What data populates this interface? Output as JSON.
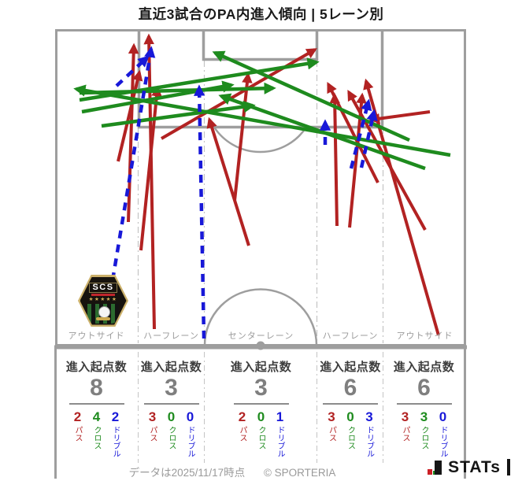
{
  "title": "直近3試合のPA内進入傾向 | 5レーン別",
  "stats_header": "進入起点数",
  "legend_labels": {
    "pass": "パス",
    "cross": "クロス",
    "dribble": "ドリブル"
  },
  "badge": {
    "text": "SCS",
    "stars": "★★★★★"
  },
  "footer": {
    "data_note": "データは2025/11/17時点",
    "copyright": "© SPORTERIA",
    "logo_text": "STATs"
  },
  "colors": {
    "pass": "#b22222",
    "cross": "#1e8b1e",
    "dribble": "#1818d8",
    "pitch_line": "#9e9e9e",
    "lane_line": "#c4c4c4",
    "label_gray": "#9b9b9b",
    "count_gray": "#7f7f7f",
    "header_dark": "#3d3d3d"
  },
  "chart_data": {
    "type": "line",
    "subtype": "soccer-pitch-arrow-map",
    "title": "直近3試合のPA内進入傾向 | 5レーン別",
    "legend": [
      "パス",
      "クロス",
      "ドリブル"
    ],
    "lanes": [
      {
        "label": "アウトサイド",
        "origin_count": 8,
        "pass": 2,
        "cross": 4,
        "dribble": 2
      },
      {
        "label": "ハーフレーン",
        "origin_count": 3,
        "pass": 3,
        "cross": 0,
        "dribble": 0
      },
      {
        "label": "センターレーン",
        "origin_count": 3,
        "pass": 2,
        "cross": 0,
        "dribble": 1
      },
      {
        "label": "ハーフレーン",
        "origin_count": 6,
        "pass": 3,
        "cross": 0,
        "dribble": 3
      },
      {
        "label": "アウトサイド",
        "origin_count": 6,
        "pass": 3,
        "cross": 3,
        "dribble": 0
      }
    ],
    "arrows": [
      {
        "type": "pass",
        "from": [
          196,
          418
        ],
        "to": [
          189,
          46
        ]
      },
      {
        "type": "pass",
        "from": [
          179,
          318
        ],
        "to": [
          200,
          112
        ]
      },
      {
        "type": "pass",
        "from": [
          205,
          176
        ],
        "to": [
          400,
          63
        ]
      },
      {
        "type": "pass",
        "from": [
          163,
          282
        ],
        "to": [
          170,
          58
        ]
      },
      {
        "type": "pass",
        "from": [
          150,
          205
        ],
        "to": [
          177,
          92
        ]
      },
      {
        "type": "pass",
        "from": [
          316,
          312
        ],
        "to": [
          266,
          152
        ]
      },
      {
        "type": "pass",
        "from": [
          298,
          255
        ],
        "to": [
          315,
          95
        ]
      },
      {
        "type": "pass",
        "from": [
          428,
          287
        ],
        "to": [
          425,
          121
        ]
      },
      {
        "type": "pass",
        "from": [
          444,
          289
        ],
        "to": [
          460,
          121
        ]
      },
      {
        "type": "pass",
        "from": [
          557,
          426
        ],
        "to": [
          465,
          103
        ]
      },
      {
        "type": "pass",
        "from": [
          546,
          142
        ],
        "to": [
          472,
          152
        ]
      },
      {
        "type": "pass",
        "from": [
          540,
          292
        ],
        "to": [
          443,
          117
        ]
      },
      {
        "type": "pass",
        "from": [
          480,
          232
        ],
        "to": [
          417,
          107
        ]
      },
      {
        "type": "cross",
        "from": [
          572,
          197
        ],
        "to": [
          97,
          113
        ]
      },
      {
        "type": "cross",
        "from": [
          520,
          178
        ],
        "to": [
          273,
          67
        ]
      },
      {
        "type": "cross",
        "from": [
          101,
          127
        ],
        "to": [
          402,
          79
        ]
      },
      {
        "type": "cross",
        "from": [
          101,
          118
        ],
        "to": [
          347,
          112
        ]
      },
      {
        "type": "cross",
        "from": [
          129,
          160
        ],
        "to": [
          321,
          134
        ]
      },
      {
        "type": "cross",
        "from": [
          540,
          214
        ],
        "to": [
          281,
          122
        ]
      },
      {
        "type": "cross",
        "from": [
          104,
          142
        ],
        "to": [
          294,
          108
        ]
      },
      {
        "type": "dribble",
        "from": [
          143,
          356
        ],
        "to": [
          192,
          62
        ]
      },
      {
        "type": "dribble",
        "from": [
          148,
          109
        ],
        "to": [
          187,
          73
        ]
      },
      {
        "type": "dribble",
        "from": [
          259,
          430
        ],
        "to": [
          253,
          111
        ]
      },
      {
        "type": "dribble",
        "from": [
          413,
          184
        ],
        "to": [
          413,
          155
        ]
      },
      {
        "type": "dribble",
        "from": [
          446,
          214
        ],
        "to": [
          468,
          129
        ]
      },
      {
        "type": "dribble",
        "from": [
          459,
          213
        ],
        "to": [
          475,
          142
        ]
      }
    ]
  }
}
